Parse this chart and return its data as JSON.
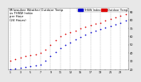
{
  "title": "Milwaukee Weather Outdoor Temp\nvs THSW Index\nper Hour\n(24 Hours)",
  "title_fontsize": 2.8,
  "bg_color": "#e8e8e8",
  "plot_bg_color": "#ffffff",
  "grid_color": "#aaaaaa",
  "temp_color": "#dd0000",
  "thsw_color": "#0000cc",
  "marker_size": 1.5,
  "hours": [
    1,
    2,
    3,
    4,
    5,
    6,
    7,
    8,
    9,
    10,
    11,
    12,
    13,
    14,
    15,
    16,
    17,
    18,
    19,
    20,
    21,
    22,
    23,
    24
  ],
  "temp_data": [
    30,
    32,
    34,
    36,
    37,
    38,
    40,
    44,
    50,
    55,
    60,
    63,
    65,
    67,
    70,
    72,
    74,
    76,
    77,
    79,
    81,
    83,
    85,
    87
  ],
  "thsw_data": [
    20,
    21,
    22,
    23,
    24,
    25,
    26,
    30,
    36,
    41,
    46,
    50,
    53,
    56,
    59,
    62,
    65,
    67,
    69,
    71,
    73,
    75,
    77,
    79
  ],
  "ylim_min": 20,
  "ylim_max": 95,
  "yticks": [
    20,
    30,
    40,
    50,
    60,
    70,
    80,
    90
  ],
  "ytick_fontsize": 2.5,
  "xtick_fontsize": 2.3,
  "xtick_every": 2,
  "legend_fontsize": 2.5,
  "legend_temp_label": "Outdoor Temp",
  "legend_thsw_label": "THSW Index",
  "grid_hours": [
    1,
    3,
    5,
    7,
    9,
    11,
    13,
    15,
    17,
    19,
    21,
    23
  ]
}
